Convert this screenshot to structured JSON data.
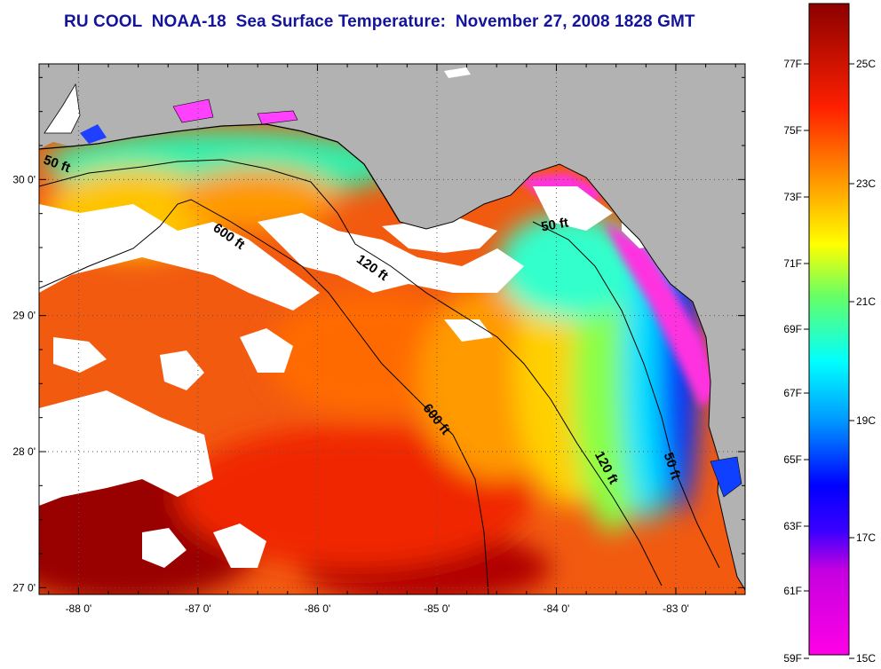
{
  "title": "RU COOL  NOAA-18  Sea Surface Temperature:  November 27, 2008 1828 GMT",
  "colors": {
    "land": "#b2b2b2",
    "cloud": "#ffffff",
    "contour": "#000000",
    "title": "#14149a"
  },
  "map": {
    "lon_range": [
      -88.33,
      -82.42
    ],
    "lat_range": [
      26.95,
      30.85
    ],
    "lon_ticks": [
      {
        "value": -88,
        "label": "-88 0'"
      },
      {
        "value": -87,
        "label": "-87 0'"
      },
      {
        "value": -86,
        "label": "-86 0'"
      },
      {
        "value": -85,
        "label": "-85 0'"
      },
      {
        "value": -84,
        "label": "-84 0'"
      },
      {
        "value": -83,
        "label": "-83 0'"
      }
    ],
    "lat_ticks": [
      {
        "value": 30,
        "label": "30 0'"
      },
      {
        "value": 29,
        "label": "29 0'"
      },
      {
        "value": 28,
        "label": "28 0'"
      },
      {
        "value": 27,
        "label": "27 0'"
      }
    ],
    "grid": "dotted",
    "contour_labels": [
      {
        "text": "50 ft",
        "lon": -88.3,
        "lat": 30.12,
        "angle": 20
      },
      {
        "text": "600 ft",
        "lon": -86.88,
        "lat": 29.63,
        "angle": 35
      },
      {
        "text": "120 ft",
        "lon": -85.68,
        "lat": 29.4,
        "angle": 35
      },
      {
        "text": "50 ft",
        "lon": -84.12,
        "lat": 29.62,
        "angle": -10
      },
      {
        "text": "600 ft",
        "lon": -85.12,
        "lat": 28.32,
        "angle": 52
      },
      {
        "text": "120 ft",
        "lon": -83.68,
        "lat": 27.98,
        "angle": 62
      },
      {
        "text": "50 ft",
        "lon": -83.1,
        "lat": 27.98,
        "angle": 72
      }
    ]
  },
  "colorbar": {
    "fahrenheit_labels": [
      "77F",
      "75F",
      "73F",
      "71F",
      "69F",
      "67F",
      "65F",
      "63F",
      "61F",
      "59F"
    ],
    "celsius_labels": [
      "25C",
      "23C",
      "21C",
      "19C",
      "17C",
      "15C"
    ],
    "stops": [
      "#ff00e6",
      "#8a2be2",
      "#0000ff",
      "#00aaff",
      "#00ffee",
      "#ffff00",
      "#ff9900",
      "#ff2200",
      "#8b0000"
    ]
  }
}
